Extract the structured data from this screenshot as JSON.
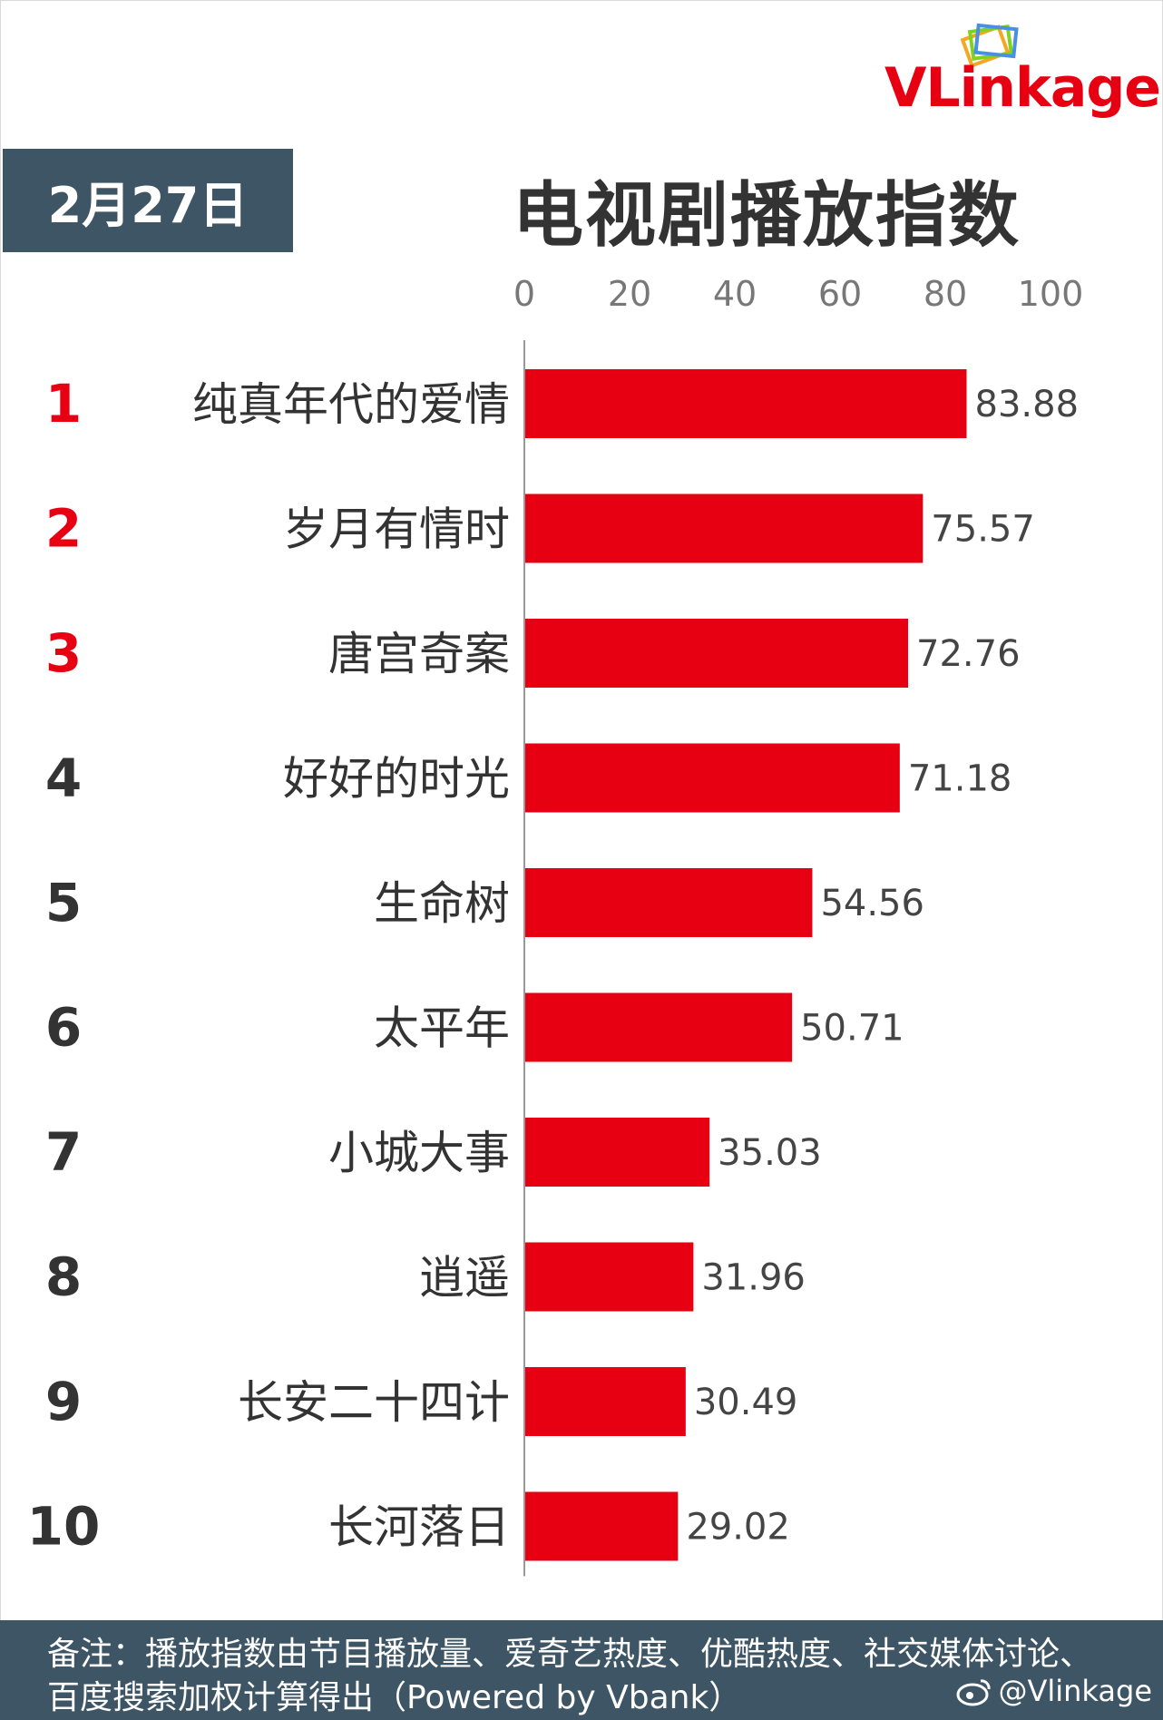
{
  "brand": {
    "logo_text": "VLinkage",
    "colors": {
      "accent": "#e60012",
      "badge": "#3d5565",
      "text": "#333333",
      "axis": "#999999"
    }
  },
  "header": {
    "date": "2月27日",
    "title": "电视剧播放指数"
  },
  "chart_data": {
    "type": "bar",
    "orientation": "horizontal",
    "categories": [
      "纯真年代的爱情",
      "岁月有情时",
      "唐宫奇案",
      "好好的时光",
      "生命树",
      "太平年",
      "小城大事",
      "逍遥",
      "长安二十四计",
      "长河落日"
    ],
    "ranks": [
      "1",
      "2",
      "3",
      "4",
      "5",
      "6",
      "7",
      "8",
      "9",
      "10"
    ],
    "values": [
      83.88,
      75.57,
      72.76,
      71.18,
      54.56,
      50.71,
      35.03,
      31.96,
      30.49,
      29.02
    ],
    "value_labels": [
      "83.88",
      "75.57",
      "72.76",
      "71.18",
      "54.56",
      "50.71",
      "35.03",
      "31.96",
      "30.49",
      "29.02"
    ],
    "xlim": [
      0,
      100
    ],
    "xticks": [
      "0",
      "20",
      "40",
      "60",
      "80",
      "100"
    ],
    "xtick_values": [
      0,
      20,
      40,
      60,
      80,
      100
    ],
    "x_axis_position": "top",
    "grid": false,
    "legend": "none",
    "bar_color": "#e60012",
    "top_rank_color": "#e60012",
    "rank_color": "#333333"
  },
  "footer": {
    "note": "备注：播放指数由节目播放量、爱奇艺热度、优酷热度、社交媒体讨论、百度搜索加权计算得出（Powered by Vbank）",
    "weibo_handle": "@Vlinkage",
    "weibo_icon": "weibo-icon"
  }
}
